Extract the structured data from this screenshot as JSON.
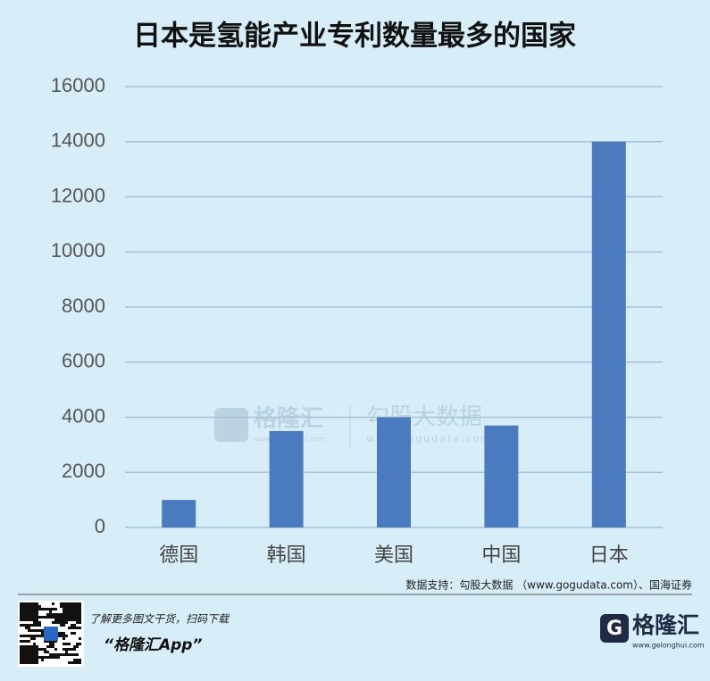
{
  "chart_data": {
    "type": "bar",
    "title": "日本是氢能产业专利数量最多的国家",
    "categories": [
      "德国",
      "韩国",
      "美国",
      "中国",
      "日本"
    ],
    "values": [
      1000,
      3500,
      4000,
      3700,
      14000
    ],
    "color": "#4a7bbf",
    "ylim": [
      0,
      16000
    ],
    "yticks": [
      0,
      2000,
      4000,
      6000,
      8000,
      10000,
      12000,
      14000,
      16000
    ],
    "grid": true,
    "source": "数据支持：勾股大数据 （www.gogudata.com）、国海证券"
  },
  "watermark": {
    "brand": "格隆汇",
    "brand_url": "www.gelonghui.com",
    "data_brand": "勾股大数据",
    "data_url": "www.gogudata.com"
  },
  "footer": {
    "promo": "了解更多图文干货，扫码下载",
    "app": "“格隆汇App”",
    "logo": "格隆汇",
    "url": "www.gelonghui.com"
  }
}
